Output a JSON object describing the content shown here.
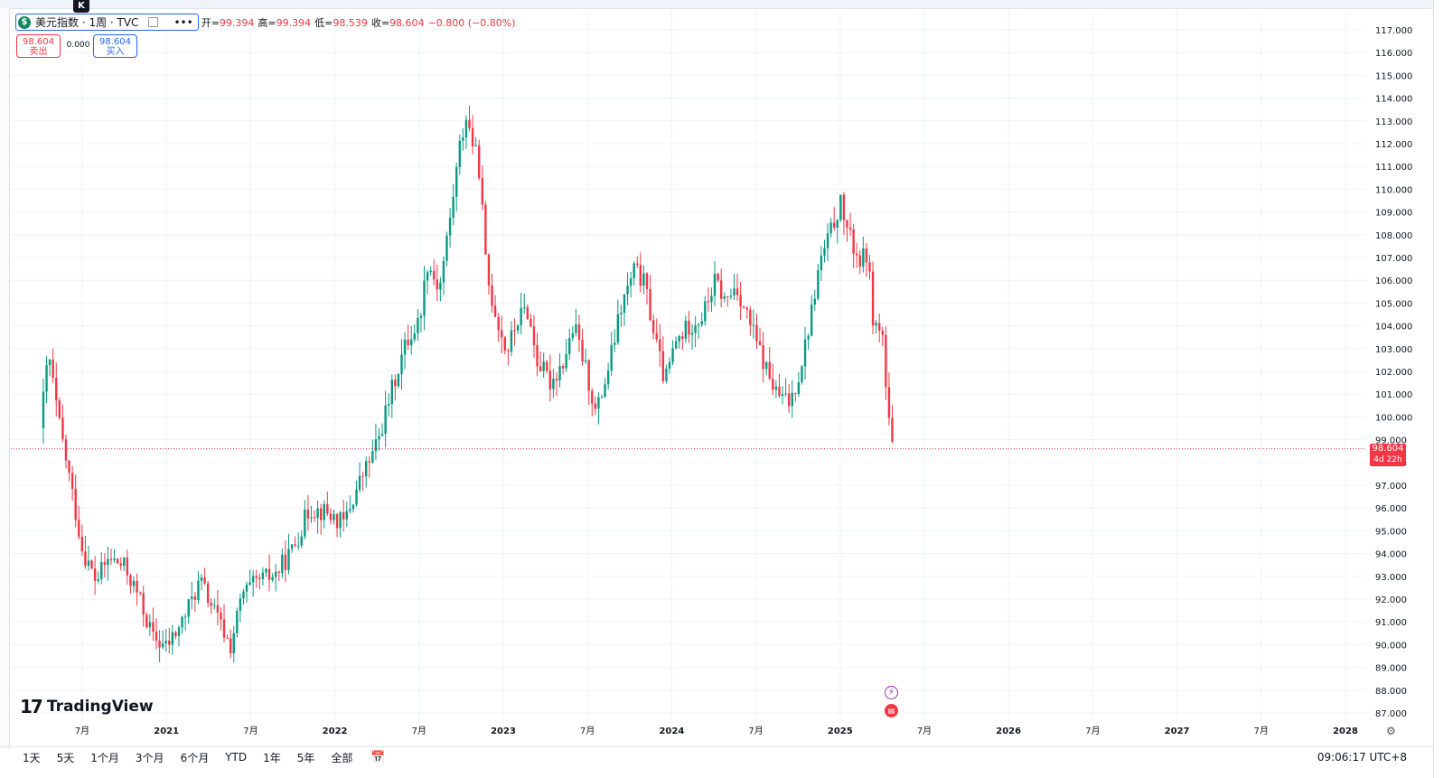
{
  "symbol": {
    "icon": "$",
    "title": "美元指数 · 1周 · TVC",
    "more_label": "•••"
  },
  "ohlc": {
    "open_label": "开",
    "open": "99.394",
    "high_label": "高",
    "high": "99.394",
    "low_label": "低",
    "low": "98.539",
    "close_label": "收",
    "close": "98.604",
    "change": "−0.800 (−0.80%)"
  },
  "trade": {
    "sell_price": "98.604",
    "sell_label": "卖出",
    "spread": "0.000",
    "buy_price": "98.604",
    "buy_label": "买入"
  },
  "k_badge": "K",
  "current_price_tag": {
    "price": "98.604",
    "countdown": "4d 22h"
  },
  "logo": {
    "mark": "17",
    "text": "TradingView"
  },
  "ranges": [
    "1天",
    "5天",
    "1个月",
    "3个月",
    "6个月",
    "YTD",
    "1年",
    "5年",
    "全部"
  ],
  "calendar_icon": "calendar-icon",
  "clock": "09:06:17 UTC+8",
  "colors": {
    "up": "#089981",
    "down": "#f23645",
    "grid": "#f0f3fa",
    "accent": "#2962ff"
  },
  "chart_data": {
    "type": "candlestick",
    "interval": "1周",
    "y_ticks": [
      "117.000",
      "116.000",
      "115.000",
      "114.000",
      "113.000",
      "112.000",
      "111.000",
      "110.000",
      "109.000",
      "108.000",
      "107.000",
      "106.000",
      "105.000",
      "104.000",
      "103.000",
      "102.000",
      "101.000",
      "100.000",
      "99.000",
      "98.000",
      "97.000",
      "96.000",
      "95.000",
      "94.000",
      "93.000",
      "92.000",
      "91.000",
      "90.000",
      "89.000",
      "88.000",
      "87.000"
    ],
    "x_ticks": [
      "7月",
      "2021",
      "7月",
      "2022",
      "7月",
      "2023",
      "7月",
      "2024",
      "7月",
      "2025",
      "7月",
      "2026",
      "7月",
      "2027",
      "7月",
      "2028"
    ],
    "ylim": [
      86.8,
      117.5
    ],
    "current_price": 98.604,
    "close_path": [
      {
        "t": 2020.25,
        "v": 99.5
      },
      {
        "t": 2020.3,
        "v": 102.8
      },
      {
        "t": 2020.36,
        "v": 99.8
      },
      {
        "t": 2020.42,
        "v": 97.5
      },
      {
        "t": 2020.5,
        "v": 94.2
      },
      {
        "t": 2020.58,
        "v": 92.8
      },
      {
        "t": 2020.66,
        "v": 93.8
      },
      {
        "t": 2020.75,
        "v": 93.4
      },
      {
        "t": 2020.83,
        "v": 92.2
      },
      {
        "t": 2020.92,
        "v": 90.3
      },
      {
        "t": 2021.0,
        "v": 89.9
      },
      {
        "t": 2021.08,
        "v": 90.8
      },
      {
        "t": 2021.2,
        "v": 92.8
      },
      {
        "t": 2021.3,
        "v": 91.2
      },
      {
        "t": 2021.38,
        "v": 89.9
      },
      {
        "t": 2021.45,
        "v": 92.2
      },
      {
        "t": 2021.55,
        "v": 92.8
      },
      {
        "t": 2021.65,
        "v": 93.1
      },
      {
        "t": 2021.75,
        "v": 94.2
      },
      {
        "t": 2021.85,
        "v": 96.0
      },
      {
        "t": 2021.95,
        "v": 95.8
      },
      {
        "t": 2022.05,
        "v": 95.3
      },
      {
        "t": 2022.15,
        "v": 97.2
      },
      {
        "t": 2022.25,
        "v": 98.8
      },
      {
        "t": 2022.35,
        "v": 101.5
      },
      {
        "t": 2022.42,
        "v": 103.2
      },
      {
        "t": 2022.5,
        "v": 104.2
      },
      {
        "t": 2022.55,
        "v": 106.8
      },
      {
        "t": 2022.62,
        "v": 105.6
      },
      {
        "t": 2022.68,
        "v": 108.5
      },
      {
        "t": 2022.74,
        "v": 111.8
      },
      {
        "t": 2022.78,
        "v": 113.2
      },
      {
        "t": 2022.82,
        "v": 112.0
      },
      {
        "t": 2022.86,
        "v": 110.8
      },
      {
        "t": 2022.9,
        "v": 106.2
      },
      {
        "t": 2022.96,
        "v": 104.4
      },
      {
        "t": 2023.02,
        "v": 102.8
      },
      {
        "t": 2023.08,
        "v": 104.2
      },
      {
        "t": 2023.14,
        "v": 104.8
      },
      {
        "t": 2023.2,
        "v": 102.5
      },
      {
        "t": 2023.28,
        "v": 101.5
      },
      {
        "t": 2023.36,
        "v": 102.5
      },
      {
        "t": 2023.42,
        "v": 104.0
      },
      {
        "t": 2023.5,
        "v": 101.8
      },
      {
        "t": 2023.55,
        "v": 100.1
      },
      {
        "t": 2023.62,
        "v": 102.0
      },
      {
        "t": 2023.7,
        "v": 104.8
      },
      {
        "t": 2023.78,
        "v": 106.5
      },
      {
        "t": 2023.84,
        "v": 105.8
      },
      {
        "t": 2023.9,
        "v": 103.5
      },
      {
        "t": 2023.96,
        "v": 101.5
      },
      {
        "t": 2024.02,
        "v": 103.2
      },
      {
        "t": 2024.1,
        "v": 104.0
      },
      {
        "t": 2024.18,
        "v": 104.4
      },
      {
        "t": 2024.26,
        "v": 106.0
      },
      {
        "t": 2024.32,
        "v": 105.0
      },
      {
        "t": 2024.38,
        "v": 105.8
      },
      {
        "t": 2024.46,
        "v": 104.2
      },
      {
        "t": 2024.54,
        "v": 102.5
      },
      {
        "t": 2024.62,
        "v": 101.0
      },
      {
        "t": 2024.7,
        "v": 100.6
      },
      {
        "t": 2024.76,
        "v": 102.0
      },
      {
        "t": 2024.82,
        "v": 104.2
      },
      {
        "t": 2024.88,
        "v": 106.8
      },
      {
        "t": 2024.94,
        "v": 108.0
      },
      {
        "t": 2025.0,
        "v": 109.4
      },
      {
        "t": 2025.06,
        "v": 107.8
      },
      {
        "t": 2025.12,
        "v": 106.8
      },
      {
        "t": 2025.16,
        "v": 107.2
      },
      {
        "t": 2025.2,
        "v": 104.0
      },
      {
        "t": 2025.25,
        "v": 103.8
      },
      {
        "t": 2025.28,
        "v": 100.2
      },
      {
        "t": 2025.31,
        "v": 98.604
      }
    ]
  }
}
